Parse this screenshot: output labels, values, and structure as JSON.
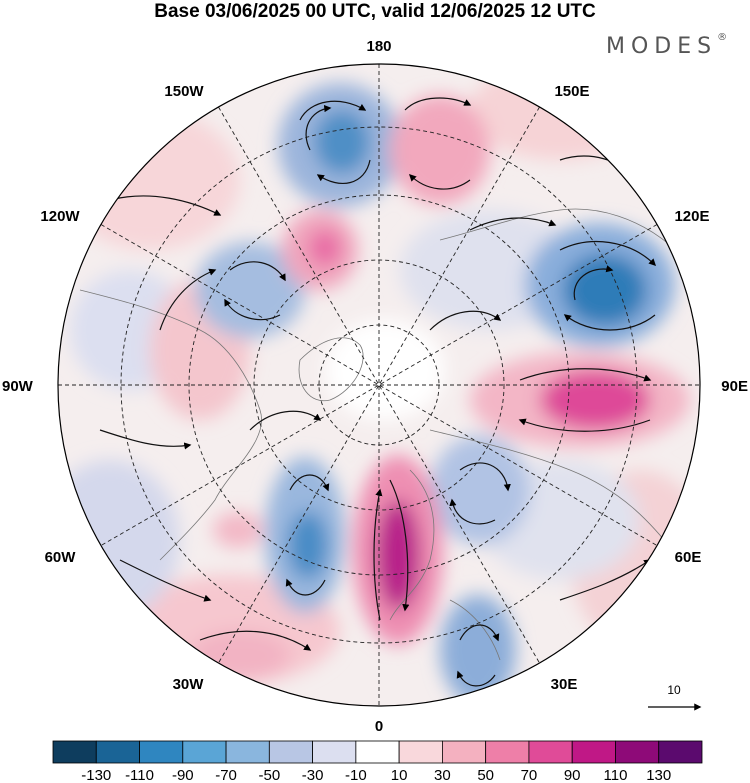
{
  "title": "Base 03/06/2025 00 UTC, valid 12/06/2025 12 UTC",
  "brand": "MODES",
  "brand_mark": "®",
  "longitude_labels": {
    "top": "180",
    "bottom": "0",
    "left": "90W",
    "right": "90E",
    "upper_left": "150W",
    "upper_right": "150E",
    "mid_left_upper": "120W",
    "mid_right_upper": "120E",
    "lower_left": "60W",
    "lower_right": "60E",
    "bottom_left": "30W",
    "bottom_right": "30E"
  },
  "reference_vector": {
    "label": "10"
  },
  "colorbar": {
    "ticks": [
      "-130",
      "-110",
      "-90",
      "-70",
      "-50",
      "-30",
      "-10",
      "10",
      "30",
      "50",
      "70",
      "90",
      "110",
      "130"
    ],
    "colors": [
      "#0e3d5e",
      "#1a6496",
      "#2f86c0",
      "#5aa5d6",
      "#8ab6de",
      "#b8c6e4",
      "#dcdff0",
      "#ffffff",
      "#f9d8dc",
      "#f4b1c0",
      "#ee7fa8",
      "#e04b98",
      "#c01886",
      "#8e0a78",
      "#5b0a6e"
    ]
  }
}
